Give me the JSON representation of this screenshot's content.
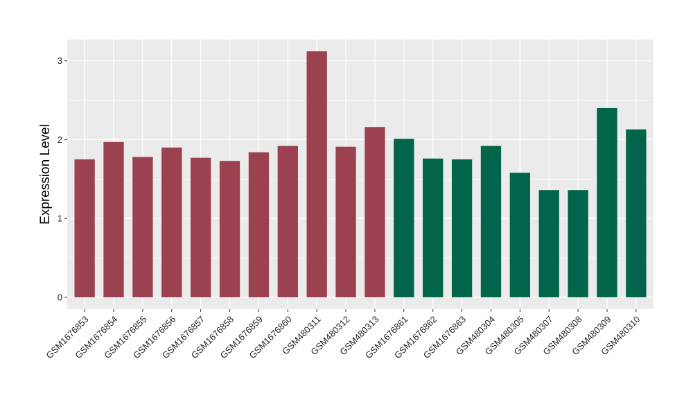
{
  "chart_data": {
    "type": "bar",
    "title": "",
    "xlabel": "",
    "ylabel": "Expression Level",
    "ylim": [
      -0.15,
      3.27
    ],
    "yticks": [
      0,
      1,
      2,
      3
    ],
    "grid": true,
    "legend": "none",
    "categories": [
      "GSM1676853",
      "GSM1676854",
      "GSM1676855",
      "GSM1676856",
      "GSM1676857",
      "GSM1676858",
      "GSM1676859",
      "GSM1676860",
      "GSM480311",
      "GSM480312",
      "GSM480313",
      "GSM1676861",
      "GSM1676862",
      "GSM1676863",
      "GSM480304",
      "GSM480305",
      "GSM480307",
      "GSM480308",
      "GSM480309",
      "GSM480310"
    ],
    "values": [
      1.75,
      1.97,
      1.78,
      1.9,
      1.77,
      1.73,
      1.84,
      1.92,
      3.12,
      1.91,
      2.16,
      2.01,
      1.76,
      1.75,
      1.92,
      1.58,
      1.36,
      1.36,
      2.4,
      2.13
    ],
    "groups": [
      "a",
      "a",
      "a",
      "a",
      "a",
      "a",
      "a",
      "a",
      "a",
      "a",
      "a",
      "b",
      "b",
      "b",
      "b",
      "b",
      "b",
      "b",
      "b",
      "b"
    ],
    "colors": {
      "a": "#9b4150",
      "b": "#00654a"
    },
    "panel_background": "#ebebeb",
    "grid_color": "#ffffff"
  }
}
